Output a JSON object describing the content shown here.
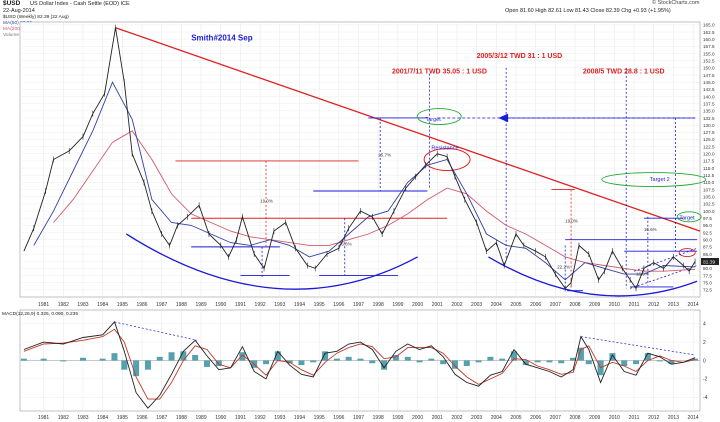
{
  "header": {
    "symbol": "$USD",
    "title": "US Dollar Index - Cash Settle (EOD) ICE",
    "date": "22-Aug-2014",
    "source": "© StockCharts.com",
    "quote": "Open 81.60  High 82.61  Low 81.43  Close 82.39  Chg +0.93 (+1.95%)",
    "legend": [
      "$USD (Weekly) 82.39 (22 Aug)",
      "MA(50) 80.50",
      "MA(200) 79.67",
      "Volume undef"
    ]
  },
  "colors": {
    "price": "#222222",
    "ma50": "#3340a8",
    "ma200": "#d25a6a",
    "trend": "#e02020",
    "blue": "#1a1ad8",
    "green": "#22aa33",
    "hist": "#2a8a9a",
    "macd": "#222222",
    "signal": "#c0392b"
  },
  "annotations": {
    "smith": "Smith#2014 Sep",
    "a1": "2001/7/11 TWD 35.05 : 1 USD",
    "a2": "2005/3/12 TWD 31 : 1 USD",
    "a3": "2008/5 TWD 28.8 : 1 USD",
    "target": "Target",
    "target2": "Target 2",
    "target3": "Target",
    "resistance": "Resistance",
    "pct1": "19.0%",
    "pct2": "25.7%",
    "pct3": "26.6%",
    "pct4": "19.0%",
    "pct5": "22.2%",
    "pct6": "16.6%",
    "pct7": "16.6%"
  },
  "chart_data": [
    {
      "type": "line",
      "title": "$USD (Weekly)",
      "x_ticks": [
        "1981",
        "1982",
        "1983",
        "1984",
        "1985",
        "1986",
        "1987",
        "1988",
        "1989",
        "1990",
        "1991",
        "1992",
        "1993",
        "1994",
        "1995",
        "1996",
        "1997",
        "1998",
        "1999",
        "2000",
        "2001",
        "2002",
        "2003",
        "2004",
        "2005",
        "2006",
        "2007",
        "2008",
        "2009",
        "2010",
        "2011",
        "2012",
        "2013",
        "2014"
      ],
      "y_ticks": [
        165.0,
        162.5,
        160.0,
        157.5,
        155.0,
        152.5,
        150.0,
        147.5,
        145.0,
        142.5,
        140.0,
        137.5,
        135.0,
        132.5,
        130.0,
        127.5,
        125.0,
        122.5,
        120.0,
        117.5,
        115.0,
        112.5,
        110.0,
        107.5,
        105.0,
        102.5,
        100.0,
        97.5,
        95.0,
        92.5,
        90.0,
        87.5,
        85.0,
        82.5,
        80.0,
        77.5,
        75.0,
        72.5
      ],
      "ylim": [
        70,
        166
      ],
      "last_label": "82.39",
      "series": [
        {
          "name": "$USD (Weekly)",
          "x": [
            1980.5,
            1981.0,
            1981.6,
            1982.0,
            1982.8,
            1983.5,
            1984.0,
            1984.6,
            1985.15,
            1985.6,
            1986.0,
            1986.6,
            1987.0,
            1987.5,
            1987.9,
            1988.3,
            1988.8,
            1989.4,
            1989.9,
            1990.5,
            1990.9,
            1991.3,
            1991.6,
            1992.2,
            1992.7,
            1993.2,
            1993.8,
            1994.3,
            1994.9,
            1995.3,
            1995.9,
            1996.5,
            1997.0,
            1997.6,
            1998.2,
            1998.7,
            1999.3,
            1999.9,
            2000.4,
            2000.9,
            2001.5,
            2002.0,
            2002.4,
            2002.9,
            2003.5,
            2004.0,
            2004.5,
            2004.9,
            2005.5,
            2005.9,
            2006.5,
            2007.0,
            2007.5,
            2008.0,
            2008.3,
            2008.7,
            2009.2,
            2009.7,
            2010.0,
            2010.4,
            2010.9,
            2011.3,
            2011.6,
            2012.0,
            2012.5,
            2013.0,
            2013.5,
            2014.0,
            2014.3,
            2014.6
          ],
          "y": [
            86,
            94,
            107,
            118,
            121,
            126,
            134,
            141,
            164,
            145,
            120,
            110,
            100,
            92,
            88,
            95,
            98,
            102,
            92,
            88,
            84,
            90,
            98,
            85,
            80,
            93,
            96,
            87,
            81,
            80,
            85,
            87,
            94,
            100,
            98,
            92,
            100,
            108,
            112,
            116,
            120,
            119,
            112,
            104,
            96,
            86,
            89,
            81,
            92,
            88,
            86,
            84,
            78,
            73,
            75,
            88,
            85,
            76,
            79,
            86,
            80,
            76,
            73,
            80,
            82,
            80,
            84,
            81,
            79,
            82.39
          ]
        },
        {
          "name": "MA(50)",
          "x": [
            1981,
            1982,
            1983,
            1984,
            1985,
            1986,
            1987,
            1988,
            1989,
            1990,
            1991,
            1992,
            1993,
            1994,
            1995,
            1996,
            1997,
            1998,
            1999,
            2000,
            2001,
            2002,
            2003,
            2004,
            2005,
            2006,
            2007,
            2008,
            2009,
            2010,
            2011,
            2012,
            2013,
            2014.6
          ],
          "y": [
            88,
            100,
            114,
            128,
            145,
            132,
            104,
            96,
            95,
            92,
            89,
            88,
            90,
            88,
            84,
            86,
            92,
            98,
            100,
            110,
            116,
            118,
            106,
            92,
            88,
            87,
            82,
            76,
            82,
            80,
            78,
            78,
            81,
            80.5
          ]
        },
        {
          "name": "MA(200)",
          "x": [
            1982,
            1983,
            1984,
            1985,
            1986,
            1987,
            1988,
            1989,
            1990,
            1991,
            1992,
            1993,
            1994,
            1995,
            1996,
            1997,
            1998,
            1999,
            2000,
            2001,
            2002,
            2003,
            2004,
            2005,
            2006,
            2007,
            2008,
            2009,
            2010,
            2011,
            2012,
            2013,
            2014.6
          ],
          "y": [
            96,
            104,
            114,
            124,
            128,
            118,
            106,
            99,
            96,
            93,
            91,
            90,
            89,
            88,
            88,
            90,
            92,
            95,
            99,
            104,
            108,
            106,
            100,
            95,
            92,
            88,
            84,
            82,
            81,
            80,
            79,
            79,
            79.67
          ]
        }
      ]
    },
    {
      "type": "line",
      "title": "MACD(12,26,9)",
      "legend": [
        "MACD(12,26,9) 0.325, 0.090, 0.235"
      ],
      "y_ticks": [
        4,
        2,
        0,
        -2,
        -4
      ],
      "ylim": [
        -5.5,
        5.5
      ],
      "series": [
        {
          "name": "MACD",
          "x": [
            1980.5,
            1981.5,
            1982.5,
            1983.5,
            1984.5,
            1985.1,
            1985.6,
            1986.2,
            1986.8,
            1987.4,
            1988.0,
            1988.6,
            1989.2,
            1989.8,
            1990.4,
            1991.0,
            1991.6,
            1992.2,
            1992.8,
            1993.4,
            1994.0,
            1994.6,
            1995.2,
            1995.8,
            1996.4,
            1997.0,
            1997.6,
            1998.2,
            1998.8,
            1999.4,
            2000.0,
            2000.6,
            2001.2,
            2001.8,
            2002.4,
            2003.0,
            2003.6,
            2004.2,
            2004.8,
            2005.4,
            2006.0,
            2006.6,
            2007.2,
            2007.8,
            2008.4,
            2008.8,
            2009.2,
            2009.8,
            2010.4,
            2011.0,
            2011.6,
            2012.2,
            2012.8,
            2013.4,
            2014.0,
            2014.6
          ],
          "y": [
            1.2,
            2.0,
            1.8,
            2.5,
            2.8,
            4.2,
            1.0,
            -3.5,
            -5.2,
            -3.8,
            -1.5,
            1.0,
            2.2,
            0.5,
            -1.0,
            -0.8,
            1.5,
            -1.2,
            -2.0,
            1.0,
            -0.5,
            -1.5,
            -1.8,
            0.8,
            1.0,
            1.8,
            2.0,
            1.2,
            -0.8,
            1.0,
            1.8,
            1.2,
            1.6,
            0.4,
            -1.5,
            -2.4,
            -2.8,
            -1.6,
            -1.2,
            1.2,
            -0.4,
            -0.8,
            -1.2,
            -1.8,
            -1.0,
            2.6,
            1.2,
            -2.4,
            0.6,
            -1.2,
            -1.6,
            0.8,
            0.4,
            -0.4,
            -0.2,
            0.3
          ]
        },
        {
          "name": "Signal",
          "x": [
            1980.5,
            1981.5,
            1982.5,
            1983.5,
            1984.5,
            1985.1,
            1985.6,
            1986.2,
            1986.8,
            1987.4,
            1988.0,
            1988.6,
            1989.2,
            1989.8,
            1990.4,
            1991.0,
            1991.6,
            1992.2,
            1992.8,
            1993.4,
            1994.0,
            1994.6,
            1995.2,
            1995.8,
            1996.4,
            1997.0,
            1997.6,
            1998.2,
            1998.8,
            1999.4,
            2000.0,
            2000.6,
            2001.2,
            2001.8,
            2002.4,
            2003.0,
            2003.6,
            2004.2,
            2004.8,
            2005.4,
            2006.0,
            2006.6,
            2007.2,
            2007.8,
            2008.4,
            2008.8,
            2009.2,
            2009.8,
            2010.4,
            2011.0,
            2011.6,
            2012.2,
            2012.8,
            2013.4,
            2014.0,
            2014.6
          ],
          "y": [
            1.0,
            1.8,
            1.9,
            2.2,
            2.6,
            3.4,
            2.0,
            -1.8,
            -4.2,
            -4.2,
            -2.4,
            0.0,
            1.6,
            1.2,
            -0.4,
            -0.8,
            0.6,
            -0.4,
            -1.6,
            0.0,
            -0.2,
            -1.0,
            -1.6,
            -0.2,
            0.8,
            1.4,
            1.8,
            1.5,
            0.2,
            0.4,
            1.4,
            1.4,
            1.4,
            0.8,
            -0.6,
            -1.8,
            -2.6,
            -2.0,
            -1.4,
            0.2,
            0.1,
            -0.6,
            -1.0,
            -1.5,
            -1.3,
            1.2,
            1.6,
            -0.8,
            -0.2,
            -0.6,
            -1.2,
            0.0,
            0.5,
            0.0,
            -0.2,
            0.1
          ]
        }
      ]
    }
  ]
}
